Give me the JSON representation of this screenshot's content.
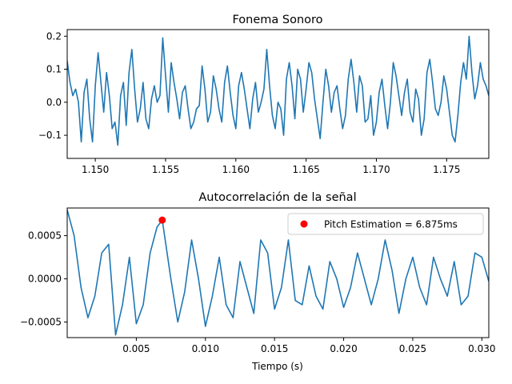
{
  "chart_data": [
    {
      "type": "line",
      "title": "Fonema Sonoro",
      "xlabel": "",
      "ylabel": "",
      "xlim": [
        1.148,
        1.178
      ],
      "ylim": [
        -0.17,
        0.22
      ],
      "xticks": [
        "1.150",
        "1.155",
        "1.160",
        "1.165",
        "1.170",
        "1.175"
      ],
      "xtick_values": [
        1.15,
        1.155,
        1.16,
        1.165,
        1.17,
        1.175
      ],
      "yticks": [
        "0.2",
        "0.1",
        "0.0",
        "−0.1"
      ],
      "ytick_values": [
        0.2,
        0.1,
        0.0,
        -0.1
      ],
      "grid": false,
      "color": "#1f77b4",
      "series": [
        {
          "x": [
            1.148,
            1.1482,
            1.1484,
            1.1486,
            1.1488,
            1.149,
            1.1492,
            1.1494,
            1.1496,
            1.1498,
            1.15,
            1.1502,
            1.1504,
            1.1506,
            1.1508,
            1.151,
            1.1512,
            1.1514,
            1.1516,
            1.1518,
            1.152,
            1.1522,
            1.1524,
            1.1526,
            1.1528,
            1.153,
            1.1532,
            1.1534,
            1.1536,
            1.1538,
            1.154,
            1.1542,
            1.1544,
            1.1546,
            1.1548,
            1.155,
            1.1552,
            1.1554,
            1.1556,
            1.1558,
            1.156,
            1.1562,
            1.1564,
            1.1566,
            1.1568,
            1.157,
            1.1572,
            1.1574,
            1.1576,
            1.1578,
            1.158,
            1.1582,
            1.1584,
            1.1586,
            1.1588,
            1.159,
            1.1592,
            1.1594,
            1.1596,
            1.1598,
            1.16,
            1.1602,
            1.1604,
            1.1606,
            1.1608,
            1.161,
            1.1612,
            1.1614,
            1.1616,
            1.1618,
            1.162,
            1.1622,
            1.1624,
            1.1626,
            1.1628,
            1.163,
            1.1632,
            1.1634,
            1.1636,
            1.1638,
            1.164,
            1.1642,
            1.1644,
            1.1646,
            1.1648,
            1.165,
            1.1652,
            1.1654,
            1.1656,
            1.1658,
            1.166,
            1.1662,
            1.1664,
            1.1666,
            1.1668,
            1.167,
            1.1672,
            1.1674,
            1.1676,
            1.1678,
            1.168,
            1.1682,
            1.1684,
            1.1686,
            1.1688,
            1.169,
            1.1692,
            1.1694,
            1.1696,
            1.1698,
            1.17,
            1.1702,
            1.1704,
            1.1706,
            1.1708,
            1.171,
            1.1712,
            1.1714,
            1.1716,
            1.1718,
            1.172,
            1.1722,
            1.1724,
            1.1726,
            1.1728,
            1.173,
            1.1732,
            1.1734,
            1.1736,
            1.1738,
            1.174,
            1.1742,
            1.1744,
            1.1746,
            1.1748,
            1.175,
            1.1752,
            1.1754,
            1.1756,
            1.1758,
            1.176,
            1.1762,
            1.1764,
            1.1766,
            1.1768,
            1.177,
            1.1772,
            1.1774,
            1.1776,
            1.1778,
            1.178
          ],
          "y": [
            0.125,
            0.06,
            0.02,
            0.04,
            0.0,
            -0.12,
            0.03,
            0.07,
            -0.05,
            -0.12,
            0.05,
            0.15,
            0.06,
            -0.03,
            0.09,
            0.02,
            -0.08,
            -0.06,
            -0.13,
            0.02,
            0.06,
            -0.07,
            0.09,
            0.16,
            0.04,
            -0.06,
            -0.02,
            0.06,
            -0.05,
            -0.08,
            0.01,
            0.05,
            0.0,
            0.02,
            0.195,
            0.08,
            -0.03,
            0.12,
            0.06,
            0.01,
            -0.05,
            0.03,
            0.05,
            -0.02,
            -0.08,
            -0.06,
            -0.02,
            -0.01,
            0.11,
            0.04,
            -0.06,
            -0.03,
            0.08,
            0.04,
            -0.02,
            -0.06,
            0.06,
            0.11,
            0.03,
            -0.04,
            -0.08,
            0.05,
            0.09,
            0.04,
            -0.02,
            -0.08,
            0.01,
            0.06,
            -0.03,
            0.0,
            0.04,
            0.16,
            0.05,
            -0.04,
            -0.08,
            0.0,
            -0.02,
            -0.1,
            0.07,
            0.12,
            0.05,
            -0.05,
            0.1,
            0.07,
            -0.03,
            0.04,
            0.12,
            0.09,
            0.01,
            -0.05,
            -0.11,
            0.0,
            0.1,
            0.05,
            -0.03,
            0.03,
            0.05,
            -0.02,
            -0.08,
            -0.04,
            0.07,
            0.13,
            0.06,
            -0.03,
            0.08,
            0.05,
            -0.06,
            -0.05,
            0.02,
            -0.1,
            -0.06,
            0.03,
            0.07,
            -0.01,
            -0.08,
            0.0,
            0.12,
            0.08,
            0.02,
            -0.04,
            0.03,
            0.07,
            -0.03,
            -0.06,
            0.04,
            0.01,
            -0.1,
            -0.05,
            0.09,
            0.13,
            0.06,
            -0.02,
            -0.04,
            0.0,
            0.08,
            0.04,
            -0.03,
            -0.1,
            -0.12,
            -0.04,
            0.06,
            0.12,
            0.07,
            0.2,
            0.09,
            0.01,
            0.05,
            0.12,
            0.07,
            0.05,
            0.02
          ]
        }
      ]
    },
    {
      "type": "line",
      "title": "Autocorrelación de la señal",
      "xlabel": "Tiempo (s)",
      "ylabel": "",
      "xlim": [
        0.0,
        0.0305
      ],
      "ylim": [
        -0.00068,
        0.00082
      ],
      "xticks": [
        "0.005",
        "0.010",
        "0.015",
        "0.020",
        "0.025",
        "0.030"
      ],
      "xtick_values": [
        0.005,
        0.01,
        0.015,
        0.02,
        0.025,
        0.03
      ],
      "yticks": [
        "0.0005",
        "0.0000",
        "−0.0005"
      ],
      "ytick_values": [
        0.0005,
        0.0,
        -0.0005
      ],
      "grid": false,
      "color": "#1f77b4",
      "legend_position": "top-right",
      "marker": {
        "x": 0.006875,
        "y": 0.00068,
        "color": "#ff0000",
        "legend_label": "Pitch Estimation = 6.875ms"
      },
      "series": [
        {
          "x": [
            0.0,
            0.0005,
            0.001,
            0.0015,
            0.002,
            0.0025,
            0.003,
            0.0035,
            0.004,
            0.0045,
            0.005,
            0.0055,
            0.006,
            0.0065,
            0.00688,
            0.0075,
            0.008,
            0.0085,
            0.009,
            0.0095,
            0.01,
            0.0105,
            0.011,
            0.0115,
            0.012,
            0.0125,
            0.013,
            0.0135,
            0.014,
            0.0145,
            0.015,
            0.0155,
            0.016,
            0.0165,
            0.017,
            0.0175,
            0.018,
            0.0185,
            0.019,
            0.0195,
            0.02,
            0.0205,
            0.021,
            0.0215,
            0.022,
            0.0225,
            0.023,
            0.0235,
            0.024,
            0.0245,
            0.025,
            0.0255,
            0.026,
            0.0265,
            0.027,
            0.0275,
            0.028,
            0.0285,
            0.029,
            0.0295,
            0.03,
            0.0305
          ],
          "y": [
            0.0008,
            0.0005,
            -0.0001,
            -0.00045,
            -0.0002,
            0.0003,
            0.0004,
            -0.00065,
            -0.0003,
            0.00025,
            -0.00052,
            -0.0003,
            0.0003,
            0.0006,
            0.00068,
            0.0,
            -0.0005,
            -0.00015,
            0.00045,
            0.0,
            -0.00055,
            -0.0002,
            0.00025,
            -0.0003,
            -0.00045,
            0.0002,
            -0.0001,
            -0.0004,
            0.00045,
            0.0003,
            -0.00035,
            -0.0001,
            0.00045,
            -0.00025,
            -0.0003,
            0.00015,
            -0.0002,
            -0.00035,
            0.0002,
            0.0,
            -0.00033,
            -0.0001,
            0.0003,
            0.0,
            -0.0003,
            0.0,
            0.00045,
            0.0001,
            -0.0004,
            0.0,
            0.00025,
            -0.0001,
            -0.0003,
            0.00025,
            0.0,
            -0.0002,
            0.0002,
            -0.0003,
            -0.0002,
            0.0003,
            0.00025,
            -3e-05
          ]
        }
      ]
    }
  ]
}
